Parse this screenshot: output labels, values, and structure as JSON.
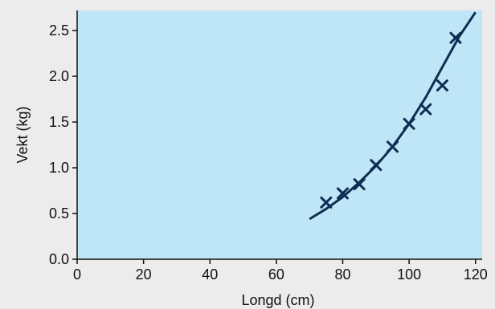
{
  "colors": {
    "page_background": "#ececec",
    "plot_background": "#bfe6f6",
    "series_color": "#0d2e52",
    "axis_color": "#111111"
  },
  "chart_data": {
    "type": "scatter",
    "title": "",
    "xlabel": "Longd (cm)",
    "ylabel": "Vekt (kg)",
    "xlim": [
      0,
      122
    ],
    "ylim": [
      0,
      2.72
    ],
    "x_ticks": [
      0,
      20,
      40,
      60,
      80,
      100,
      120
    ],
    "x_tick_labels": [
      "0",
      "20",
      "40",
      "60",
      "80",
      "100",
      "120"
    ],
    "y_ticks": [
      0,
      0.5,
      1.0,
      1.5,
      2.0,
      2.5
    ],
    "y_tick_labels": [
      "0.0",
      "0.5",
      "1.0",
      "1.5",
      "2.0",
      "2.5"
    ],
    "grid": false,
    "legend": "none",
    "series": [
      {
        "type": "scatter",
        "marker": "x",
        "points": [
          {
            "x": 75,
            "y": 0.62
          },
          {
            "x": 80,
            "y": 0.72
          },
          {
            "x": 85,
            "y": 0.82
          },
          {
            "x": 90,
            "y": 1.03
          },
          {
            "x": 95,
            "y": 1.23
          },
          {
            "x": 100,
            "y": 1.48
          },
          {
            "x": 105,
            "y": 1.64
          },
          {
            "x": 110,
            "y": 1.9
          },
          {
            "x": 114,
            "y": 2.42
          }
        ]
      },
      {
        "type": "line",
        "points": [
          {
            "x": 70,
            "y": 0.44
          },
          {
            "x": 75,
            "y": 0.55
          },
          {
            "x": 80,
            "y": 0.68
          },
          {
            "x": 85,
            "y": 0.84
          },
          {
            "x": 90,
            "y": 1.02
          },
          {
            "x": 95,
            "y": 1.23
          },
          {
            "x": 100,
            "y": 1.48
          },
          {
            "x": 105,
            "y": 1.77
          },
          {
            "x": 110,
            "y": 2.1
          },
          {
            "x": 115,
            "y": 2.43
          },
          {
            "x": 120,
            "y": 2.7
          }
        ]
      }
    ]
  }
}
